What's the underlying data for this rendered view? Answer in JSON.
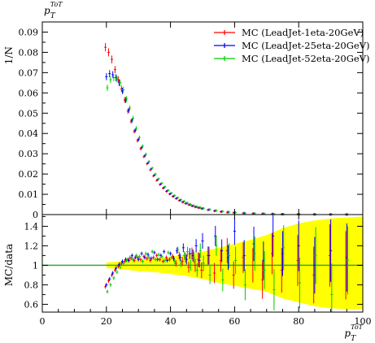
{
  "chart_data": [
    {
      "type": "scatter",
      "panel": "main",
      "title": "p_T^{ToT}",
      "ylabel": "1/N",
      "xlim": [
        0,
        100
      ],
      "ylim": [
        0,
        0.095
      ],
      "yticks": [
        0,
        0.01,
        0.02,
        0.03,
        0.04,
        0.05,
        0.06,
        0.07,
        0.08,
        0.09
      ],
      "ytick_labels": [
        "0",
        "0.01",
        "0.02",
        "0.03",
        "0.04",
        "0.05",
        "0.06",
        "0.07",
        "0.08",
        "0.09"
      ],
      "legend_position": "top-right",
      "x": [
        20,
        21,
        22,
        23,
        24,
        25,
        26,
        27,
        28,
        29,
        30,
        31,
        32,
        33,
        34,
        35,
        36,
        37,
        38,
        39,
        40,
        41,
        42,
        43,
        44,
        45,
        46,
        47,
        48,
        49,
        50,
        52,
        54,
        56,
        58,
        60,
        63,
        66,
        69,
        72,
        75,
        80,
        85,
        90,
        95
      ],
      "series": [
        {
          "name": "MC (LeadJet-1eta-20GeV)",
          "color": "#ff0000",
          "values": [
            0.0825,
            0.08,
            0.0765,
            0.0715,
            0.0665,
            0.062,
            0.0565,
            0.051,
            0.046,
            0.041,
            0.0365,
            0.0325,
            0.0285,
            0.025,
            0.022,
            0.019,
            0.0168,
            0.0148,
            0.013,
            0.0114,
            0.0101,
            0.0089,
            0.0079,
            0.0069,
            0.0061,
            0.0054,
            0.0048,
            0.0042,
            0.0037,
            0.0033,
            0.0029,
            0.0023,
            0.0018,
            0.0014,
            0.0011,
            0.0009,
            0.0007,
            0.0005,
            0.0004,
            0.0003,
            0.0002,
            0.00015,
            0.0001,
            7e-05,
            5e-05
          ]
        },
        {
          "name": "MC (LeadJet-25eta-20GeV)",
          "color": "#0000ff",
          "values": [
            0.068,
            0.0695,
            0.069,
            0.0675,
            0.065,
            0.061,
            0.0565,
            0.0515,
            0.0465,
            0.0415,
            0.037,
            0.033,
            0.029,
            0.0255,
            0.0225,
            0.0195,
            0.0172,
            0.0151,
            0.0133,
            0.0117,
            0.0103,
            0.0091,
            0.0081,
            0.0071,
            0.0063,
            0.0056,
            0.0049,
            0.0043,
            0.0038,
            0.0034,
            0.003,
            0.0024,
            0.0019,
            0.0015,
            0.0012,
            0.001,
            0.0007,
            0.0005,
            0.0004,
            0.0003,
            0.0002,
            0.00016,
            0.00011,
            8e-05,
            5e-05
          ]
        },
        {
          "name": "MC (LeadJet-52eta-20GeV)",
          "color": "#00cc00",
          "values": [
            0.0625,
            0.0665,
            0.0675,
            0.067,
            0.065,
            0.0615,
            0.057,
            0.0525,
            0.0475,
            0.0425,
            0.038,
            0.0338,
            0.0298,
            0.0262,
            0.023,
            0.02,
            0.0177,
            0.0155,
            0.0137,
            0.012,
            0.0106,
            0.0094,
            0.0083,
            0.0073,
            0.0065,
            0.0057,
            0.005,
            0.0044,
            0.0039,
            0.0035,
            0.0031,
            0.0025,
            0.002,
            0.0016,
            0.0012,
            0.001,
            0.0007,
            0.0005,
            0.0004,
            0.0003,
            0.0002,
            0.00016,
            0.00011,
            8e-05,
            5e-05
          ]
        }
      ]
    },
    {
      "type": "scatter",
      "panel": "ratio",
      "ylabel": "MC/data",
      "xlabel": "p_T^{ToT}",
      "xlim": [
        0,
        100
      ],
      "ylim": [
        0.52,
        1.52
      ],
      "xticks": [
        0,
        20,
        40,
        60,
        80,
        100
      ],
      "xtick_labels": [
        "0",
        "20",
        "40",
        "60",
        "80",
        "100"
      ],
      "yticks": [
        0.6,
        0.8,
        1,
        1.2,
        1.4
      ],
      "ytick_labels": [
        "0.6",
        "0.8",
        "1",
        "1.2",
        "1.4"
      ],
      "reference_line": 1,
      "band_color": "#ffff00",
      "band": {
        "x": [
          20,
          25,
          30,
          35,
          40,
          45,
          50,
          55,
          60,
          65,
          70,
          75,
          80,
          85,
          90,
          95,
          100
        ],
        "lower": [
          0.97,
          0.96,
          0.94,
          0.93,
          0.91,
          0.89,
          0.86,
          0.82,
          0.79,
          0.76,
          0.73,
          0.66,
          0.62,
          0.58,
          0.56,
          0.55,
          0.55
        ],
        "upper": [
          1.03,
          1.04,
          1.06,
          1.07,
          1.09,
          1.11,
          1.14,
          1.18,
          1.22,
          1.26,
          1.31,
          1.38,
          1.43,
          1.46,
          1.48,
          1.49,
          1.5
        ]
      },
      "x": [
        20,
        21,
        22,
        23,
        24,
        25,
        26,
        27,
        28,
        29,
        30,
        31,
        32,
        33,
        34,
        35,
        36,
        37,
        38,
        39,
        40,
        41,
        42,
        43,
        44,
        45,
        46,
        47,
        48,
        49,
        50,
        52,
        54,
        56,
        58,
        60,
        63,
        66,
        69,
        72,
        75,
        80,
        85,
        90,
        95
      ],
      "series": [
        {
          "name": "MC (LeadJet-1eta-20GeV)",
          "color": "#ff0000",
          "values": [
            0.78,
            0.84,
            0.9,
            0.95,
            0.99,
            1.02,
            1.04,
            1.06,
            1.07,
            1.05,
            1.08,
            1.06,
            1.09,
            1.07,
            1.05,
            1.08,
            1.1,
            1.06,
            1.04,
            1.08,
            1.06,
            1.09,
            1.02,
            1.1,
            1.04,
            1.08,
            0.98,
            1.12,
            1.0,
            1.06,
            0.95,
            1.1,
            0.92,
            1.05,
            1.15,
            0.9,
            1.08,
            1.0,
            0.85,
            1.12,
            0.95,
            1.05,
            0.9,
            1.1,
            1.0
          ]
        },
        {
          "name": "MC (LeadJet-25eta-20GeV)",
          "color": "#0000ff",
          "values": [
            0.8,
            0.86,
            0.92,
            0.97,
            1.01,
            1.04,
            1.06,
            1.05,
            1.1,
            1.08,
            1.06,
            1.12,
            1.08,
            1.11,
            1.07,
            1.13,
            1.06,
            1.1,
            1.14,
            1.05,
            1.12,
            1.07,
            1.15,
            1.08,
            1.18,
            1.06,
            1.12,
            1.1,
            1.2,
            1.05,
            1.25,
            1.1,
            1.3,
            1.15,
            1.08,
            1.35,
            1.1,
            1.22,
            1.05,
            1.3,
            1.12,
            1.2,
            1.0,
            1.15,
            1.08
          ]
        },
        {
          "name": "MC (LeadJet-52eta-20GeV)",
          "color": "#00cc00",
          "values": [
            0.73,
            0.8,
            0.87,
            0.93,
            0.98,
            1.02,
            1.05,
            1.08,
            1.06,
            1.1,
            1.09,
            1.04,
            1.12,
            1.08,
            1.14,
            1.06,
            1.11,
            1.09,
            1.05,
            1.13,
            1.08,
            1.04,
            1.16,
            1.02,
            1.1,
            1.14,
            1.0,
            1.08,
            0.95,
            1.15,
            1.02,
            0.9,
            1.2,
            0.85,
            1.1,
            1.05,
            0.8,
            1.12,
            0.95,
            0.75,
            1.18,
            0.82,
            1.1,
            0.7,
            1.05
          ]
        }
      ]
    }
  ]
}
